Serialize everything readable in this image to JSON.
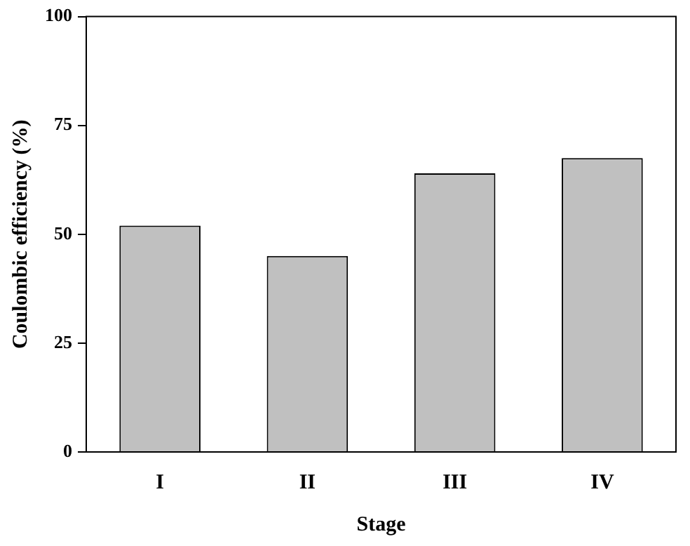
{
  "chart_data": {
    "type": "bar",
    "xlabel": "Stage",
    "ylabel": "Coulombic efficiency (%)",
    "categories": [
      "I",
      "II",
      "III",
      "IV"
    ],
    "values": [
      52,
      45,
      64,
      67.5
    ],
    "color": "#c0c0c0",
    "ylim": [
      0,
      100
    ],
    "yticks": [
      0,
      25,
      50,
      75,
      100
    ],
    "grid": false
  }
}
